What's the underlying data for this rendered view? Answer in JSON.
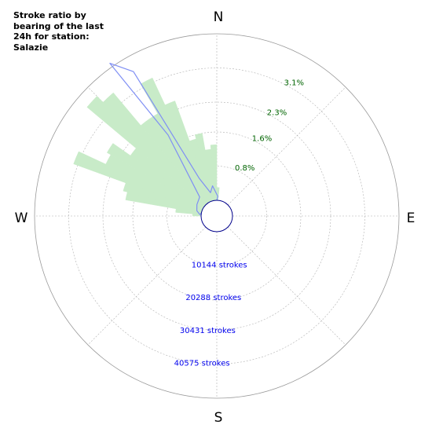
{
  "chart_data": {
    "type": "polar-bar",
    "title": "Stroke ratio by bearing of the last 24h for station: Salazie",
    "directions": [
      "N",
      "E",
      "S",
      "W"
    ],
    "ratio_ticks": [
      {
        "label": "0.8%",
        "value": 0.8
      },
      {
        "label": "1.6%",
        "value": 1.6
      },
      {
        "label": "2.3%",
        "value": 2.3
      },
      {
        "label": "3.1%",
        "value": 3.1
      }
    ],
    "stroke_ticks": [
      {
        "label": "10144 strokes",
        "value": 10144
      },
      {
        "label": "20288 strokes",
        "value": 20288
      },
      {
        "label": "30431 strokes",
        "value": 30431
      },
      {
        "label": "40575 strokes",
        "value": 40575
      }
    ],
    "rmax_ratio": 3.9,
    "rmax_strokes": 50719,
    "ratio_series": {
      "name": "",
      "bin_width_deg": 5,
      "bins": [
        {
          "bearing": 272.5,
          "value": 0.2
        },
        {
          "bearing": 277.5,
          "value": 0.6
        },
        {
          "bearing": 282.5,
          "value": 1.8
        },
        {
          "bearing": 287.5,
          "value": 1.9
        },
        {
          "bearing": 292.5,
          "value": 3.2
        },
        {
          "bearing": 297.5,
          "value": 2.5
        },
        {
          "bearing": 302.5,
          "value": 2.6
        },
        {
          "bearing": 307.5,
          "value": 2.1
        },
        {
          "bearing": 312.5,
          "value": 3.6
        },
        {
          "bearing": 317.5,
          "value": 3.4
        },
        {
          "bearing": 322.5,
          "value": 2.4
        },
        {
          "bearing": 327.5,
          "value": 2.4
        },
        {
          "bearing": 332.5,
          "value": 3.2
        },
        {
          "bearing": 337.5,
          "value": 2.5
        },
        {
          "bearing": 342.5,
          "value": 1.5
        },
        {
          "bearing": 347.5,
          "value": 1.6
        },
        {
          "bearing": 352.5,
          "value": 1.2
        },
        {
          "bearing": 357.5,
          "value": 1.3
        },
        {
          "bearing": 2.5,
          "value": 0.3
        }
      ]
    },
    "stroke_series": {
      "name": "",
      "points": [
        {
          "bearing": 0,
          "value": 0
        },
        {
          "bearing": 3,
          "value": 1200
        },
        {
          "bearing": 352,
          "value": 4500
        },
        {
          "bearing": 345,
          "value": 2600
        },
        {
          "bearing": 335,
          "value": 7800
        },
        {
          "bearing": 330,
          "value": 46000
        },
        {
          "bearing": 325,
          "value": 52000
        },
        {
          "bearing": 329,
          "value": 24000
        },
        {
          "bearing": 318,
          "value": 3000
        },
        {
          "bearing": 300,
          "value": 2200
        },
        {
          "bearing": 285,
          "value": 1500
        },
        {
          "bearing": 275,
          "value": 400
        },
        {
          "bearing": 0,
          "value": 0
        }
      ]
    },
    "grid": true,
    "colors": {
      "ratio_fill": "#c8ebc8",
      "stroke_line": "#7f8ff4",
      "ratio_label": "#006400",
      "stroke_label": "#0000ee",
      "center_circle": "#00008b",
      "grid": "#b0b0b0"
    }
  }
}
